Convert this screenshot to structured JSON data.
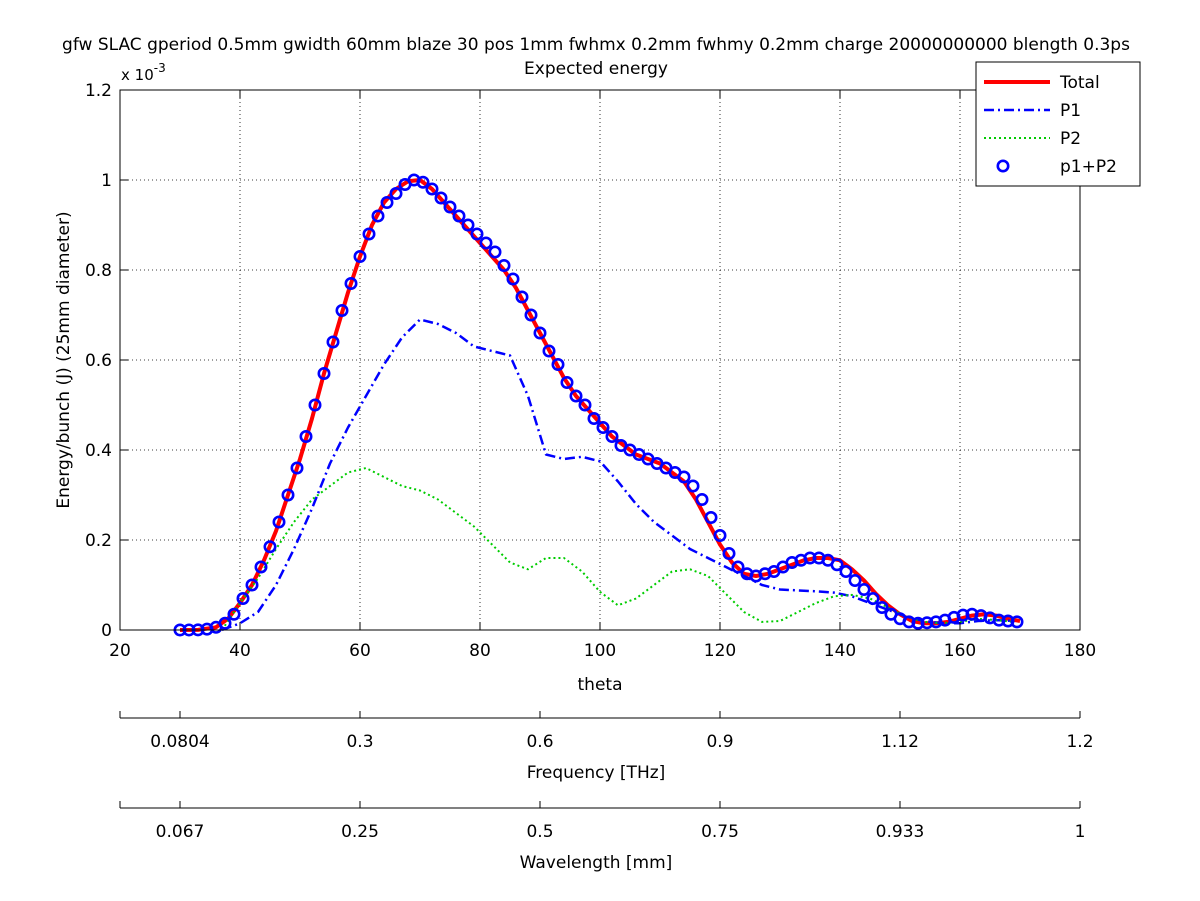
{
  "chart_data": {
    "type": "line",
    "title": "gfw SLAC gperiod 0.5mm gwidth 60mm blaze 30 pos 1mm fwhmx 0.2mm fwhmy 0.2mm charge 20000000000 blength 0.3ps",
    "subtitle": "Expected energy",
    "xlabel": "theta",
    "ylabel": "Energy/bunch (J) (25mm diameter)",
    "y_multiplier": "x 10",
    "y_multiplier_exp": "-3",
    "xlim": [
      20,
      180
    ],
    "ylim": [
      0,
      0.0012
    ],
    "grid": true,
    "legend_position": "top-right",
    "x_ticks": [
      "20",
      "40",
      "60",
      "80",
      "100",
      "120",
      "140",
      "160",
      "180"
    ],
    "y_ticks": [
      "0",
      "0.2",
      "0.4",
      "0.6",
      "0.8",
      "1",
      "1.2"
    ],
    "secondary_axes": [
      {
        "label": "Frequency [THz]",
        "ticks": [
          {
            "theta": 30,
            "label": "0.0804"
          },
          {
            "theta": 60,
            "label": "0.3"
          },
          {
            "theta": 90,
            "label": "0.6"
          },
          {
            "theta": 120,
            "label": "0.9"
          },
          {
            "theta": 150,
            "label": "1.12"
          },
          {
            "theta": 180,
            "label": "1.2"
          }
        ]
      },
      {
        "label": "Wavelength [mm]",
        "ticks": [
          {
            "theta": 30,
            "label": "0.067"
          },
          {
            "theta": 60,
            "label": "0.25"
          },
          {
            "theta": 90,
            "label": "0.5"
          },
          {
            "theta": 120,
            "label": "0.75"
          },
          {
            "theta": 150,
            "label": "0.933"
          },
          {
            "theta": 180,
            "label": "1"
          }
        ]
      }
    ],
    "series": [
      {
        "name": "Total",
        "color": "#ff0000",
        "style": "solid",
        "x": [
          30,
          33,
          36,
          38,
          40,
          42,
          44,
          46,
          48,
          50,
          52,
          54,
          56,
          58,
          60,
          62,
          64,
          66,
          68,
          70,
          72,
          74,
          76,
          78,
          80,
          82,
          84,
          86,
          88,
          90,
          92,
          94,
          96,
          98,
          100,
          102,
          104,
          106,
          108,
          110,
          112,
          114,
          116,
          118,
          120,
          122,
          124,
          126,
          128,
          130,
          132,
          134,
          136,
          138,
          140,
          142,
          144,
          146,
          148,
          150,
          152,
          154,
          156,
          158,
          160,
          162,
          164,
          166,
          168,
          170
        ],
        "values": [
          0.0,
          3e-07,
          6e-06,
          2.5e-05,
          6e-05,
          0.0001,
          0.000155,
          0.00022,
          0.0003,
          0.00038,
          0.00047,
          0.00057,
          0.00066,
          0.00075,
          0.00083,
          0.0009,
          0.00095,
          0.00098,
          0.000997,
          0.001,
          0.00098,
          0.00095,
          0.00092,
          0.00089,
          0.00086,
          0.00083,
          0.0008,
          0.00076,
          0.00071,
          0.00066,
          0.00061,
          0.00056,
          0.00052,
          0.00049,
          0.00046,
          0.00043,
          0.00041,
          0.00039,
          0.00038,
          0.00037,
          0.00035,
          0.00033,
          0.00029,
          0.00024,
          0.00019,
          0.00015,
          0.000125,
          0.00012,
          0.000125,
          0.000135,
          0.000145,
          0.000155,
          0.00016,
          0.00016,
          0.000155,
          0.000135,
          0.00011,
          8e-05,
          5.5e-05,
          3.5e-05,
          2e-05,
          1.5e-05,
          1.5e-05,
          1.8e-05,
          2.5e-05,
          3.2e-05,
          3.5e-05,
          3.2e-05,
          2.5e-05,
          2e-05
        ]
      },
      {
        "name": "P1",
        "color": "#0000ff",
        "style": "dashdot",
        "x": [
          37,
          40,
          43,
          46,
          49,
          52,
          55,
          58,
          61,
          64,
          67,
          70,
          73,
          76,
          79,
          82,
          85,
          88,
          91,
          94,
          97,
          100,
          103,
          106,
          109,
          112,
          115,
          118,
          121,
          124,
          127,
          130,
          133,
          136,
          139,
          142,
          145,
          148,
          151,
          154,
          157,
          160,
          163,
          166,
          169
        ],
        "values": [
          0.0,
          1.5e-05,
          4e-05,
          0.0001,
          0.00018,
          0.00027,
          0.00037,
          0.00045,
          0.00052,
          0.00059,
          0.00065,
          0.00069,
          0.00068,
          0.00066,
          0.00063,
          0.00062,
          0.00061,
          0.00052,
          0.00039,
          0.00038,
          0.000385,
          0.000375,
          0.00033,
          0.00028,
          0.00024,
          0.00021,
          0.00018,
          0.00016,
          0.00014,
          0.00012,
          0.0001,
          9e-05,
          8.8e-05,
          8.6e-05,
          8.3e-05,
          7.5e-05,
          6e-05,
          4.5e-05,
          3e-05,
          2e-05,
          1.5e-05,
          1.5e-05,
          2e-05,
          2.2e-05,
          2e-05
        ]
      },
      {
        "name": "P2",
        "color": "#00cc00",
        "style": "dotted",
        "x": [
          37,
          40,
          43,
          46,
          49,
          52,
          55,
          58,
          61,
          64,
          67,
          70,
          73,
          76,
          79,
          82,
          85,
          88,
          91,
          94,
          97,
          100,
          103,
          106,
          109,
          112,
          115,
          118,
          121,
          124,
          127,
          130,
          133,
          136,
          139,
          142,
          145,
          148,
          151,
          154,
          157,
          160,
          163,
          166,
          169
        ],
        "values": [
          0.0,
          6e-05,
          0.000115,
          0.00018,
          0.00024,
          0.00029,
          0.00032,
          0.00035,
          0.00036,
          0.00034,
          0.00032,
          0.00031,
          0.00029,
          0.00026,
          0.00023,
          0.00019,
          0.00015,
          0.000135,
          0.00016,
          0.00016,
          0.00013,
          8.5e-05,
          5.5e-05,
          7e-05,
          0.0001,
          0.00013,
          0.000135,
          0.00012,
          8e-05,
          4e-05,
          1.8e-05,
          2e-05,
          4e-05,
          6e-05,
          7.5e-05,
          7.8e-05,
          7e-05,
          5e-05,
          3e-05,
          1.8e-05,
          1.5e-05,
          1.8e-05,
          2.5e-05,
          2.2e-05,
          1.8e-05
        ]
      },
      {
        "name": "p1+P2",
        "color": "#0000ff",
        "style": "circles",
        "x": [
          30,
          31.5,
          33,
          34.5,
          36,
          37.5,
          39,
          40.5,
          42,
          43.5,
          45,
          46.5,
          48,
          49.5,
          51,
          52.5,
          54,
          55.5,
          57,
          58.5,
          60,
          61.5,
          63,
          64.5,
          66,
          67.5,
          69,
          70.5,
          72,
          73.5,
          75,
          76.5,
          78,
          79.5,
          81,
          82.5,
          84,
          85.5,
          87,
          88.5,
          90,
          91.5,
          93,
          94.5,
          96,
          97.5,
          99,
          100.5,
          102,
          103.5,
          105,
          106.5,
          108,
          109.5,
          111,
          112.5,
          114,
          115.5,
          117,
          118.5,
          120,
          121.5,
          123,
          124.5,
          126,
          127.5,
          129,
          130.5,
          132,
          133.5,
          135,
          136.5,
          138,
          139.5,
          141,
          142.5,
          144,
          145.5,
          147,
          148.5,
          150,
          151.5,
          153,
          154.5,
          156,
          157.5,
          159,
          160.5,
          162,
          163.5,
          165,
          166.5,
          168,
          169.5
        ],
        "values": [
          0.0,
          1e-07,
          3e-07,
          2e-06,
          6e-06,
          1.5e-05,
          3.5e-05,
          7e-05,
          0.0001,
          0.00014,
          0.000185,
          0.00024,
          0.0003,
          0.00036,
          0.00043,
          0.0005,
          0.00057,
          0.00064,
          0.00071,
          0.00077,
          0.00083,
          0.00088,
          0.00092,
          0.00095,
          0.00097,
          0.00099,
          0.001,
          0.000995,
          0.00098,
          0.00096,
          0.00094,
          0.00092,
          0.0009,
          0.00088,
          0.00086,
          0.00084,
          0.00081,
          0.00078,
          0.00074,
          0.0007,
          0.00066,
          0.00062,
          0.00059,
          0.00055,
          0.00052,
          0.0005,
          0.00047,
          0.00045,
          0.00043,
          0.00041,
          0.0004,
          0.00039,
          0.00038,
          0.00037,
          0.00036,
          0.00035,
          0.00034,
          0.00032,
          0.00029,
          0.00025,
          0.00021,
          0.00017,
          0.00014,
          0.000125,
          0.00012,
          0.000125,
          0.00013,
          0.00014,
          0.00015,
          0.000155,
          0.00016,
          0.00016,
          0.000155,
          0.000145,
          0.00013,
          0.00011,
          9e-05,
          7e-05,
          5e-05,
          3.5e-05,
          2.5e-05,
          1.8e-05,
          1.5e-05,
          1.6e-05,
          1.8e-05,
          2.2e-05,
          2.8e-05,
          3.3e-05,
          3.5e-05,
          3.2e-05,
          2.7e-05,
          2.2e-05,
          2e-05,
          1.8e-05
        ]
      }
    ]
  }
}
